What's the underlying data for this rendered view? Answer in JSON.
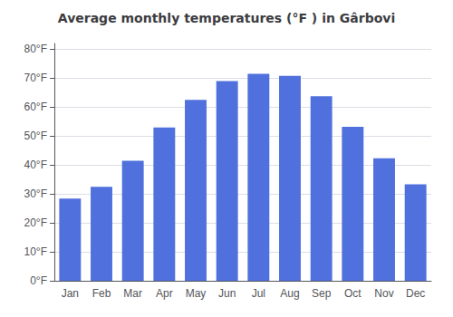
{
  "chart_data": {
    "type": "bar",
    "title": "Average monthly temperatures (°F ) in Gârbovi",
    "categories": [
      "Jan",
      "Feb",
      "Mar",
      "Apr",
      "May",
      "Jun",
      "Jul",
      "Aug",
      "Sep",
      "Oct",
      "Nov",
      "Dec"
    ],
    "values": [
      28.4,
      32.5,
      41.5,
      53.0,
      62.5,
      69.0,
      71.5,
      70.8,
      63.8,
      53.2,
      42.3,
      33.3
    ],
    "ylim": [
      0,
      82
    ],
    "yticks": [
      {
        "value": 0,
        "label": "0°F"
      },
      {
        "value": 10,
        "label": "10°F"
      },
      {
        "value": 20,
        "label": "20°F"
      },
      {
        "value": 30,
        "label": "30°F"
      },
      {
        "value": 40,
        "label": "40°F"
      },
      {
        "value": 50,
        "label": "50°F"
      },
      {
        "value": 60,
        "label": "60°F"
      },
      {
        "value": 70,
        "label": "70°F"
      },
      {
        "value": 80,
        "label": "80°F"
      }
    ],
    "grid": true
  }
}
